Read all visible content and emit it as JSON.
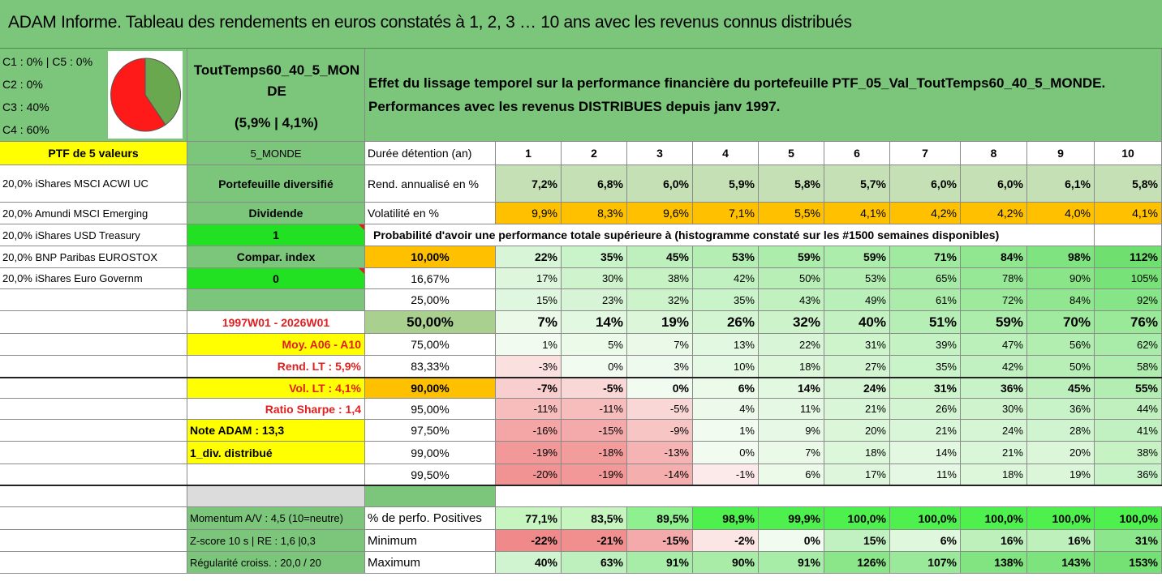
{
  "title": "ADAM Informe. Tableau des rendements en euros constatés à 1, 2, 3 … 10 ans avec les revenus connus distribués",
  "allocation": [
    "C1 : 0% | C5 : 0%",
    "C2 : 0%",
    "C3 : 40%",
    "C4 : 60%"
  ],
  "pie": {
    "C3": 40,
    "C4": 60,
    "colors": {
      "C3": "#6aa84f",
      "C4": "#ff1a1a"
    }
  },
  "portfolio_name": "ToutTemps60_40_5_MONDE",
  "portfolio_stats": "(5,9% | 4,1%)",
  "description": "Effet du lissage temporel sur la performance financière du portefeuille PTF_05_Val_ToutTemps60_40_5_MONDE. Performances avec les revenus DISTRIBUES depuis janv 1997.",
  "ptf_label": "PTF de 5 valeurs",
  "ptf_code": "5_MONDE",
  "holdings": [
    "20,0% iShares MSCI ACWI UC",
    "20,0% Amundi MSCI Emerging",
    "20,0% iShares USD Treasury",
    "20,0% BNP Paribas EUROSTOX",
    "20,0% iShares Euro Governm"
  ],
  "side": {
    "diversified": "Portefeuille diversifié",
    "dividend_label": "Dividende",
    "dividend_value": "1",
    "compar_label": "Compar. index",
    "compar_value": "0",
    "period": "1997W01 - 2026W01",
    "moy": "Moy. A06 - A10",
    "rend_lt": "Rend. LT : 5,9%",
    "vol_lt": "Vol. LT : 4,1%",
    "sharpe": "Ratio Sharpe : 1,4",
    "note": "Note ADAM : 13,3",
    "div": "1_div. distribué",
    "momentum": "Momentum A/V : 4,5 (10=neutre)",
    "zscore": "Z-score 10 s | RE : 1,6 |0,3",
    "regularite": "Régularité croiss. : 20,0 / 20"
  },
  "header_label": "Durée détention (an)",
  "years": [
    "1",
    "2",
    "3",
    "4",
    "5",
    "6",
    "7",
    "8",
    "9",
    "10"
  ],
  "rend_label": "Rend. annualisé en %",
  "rend": [
    "7,2%",
    "6,8%",
    "6,0%",
    "5,9%",
    "5,8%",
    "5,7%",
    "6,0%",
    "6,0%",
    "6,1%",
    "5,8%"
  ],
  "vol_label": "Volatilité en %",
  "vol": [
    "9,9%",
    "8,3%",
    "9,6%",
    "7,1%",
    "5,5%",
    "4,1%",
    "4,2%",
    "4,2%",
    "4,0%",
    "4,1%"
  ],
  "prob_title": "Probabilité d'avoir une performance totale supérieure à (histogramme constaté sur les #1500 semaines disponibles)",
  "quantiles": [
    {
      "p": "10,00%",
      "vals": [
        "22%",
        "35%",
        "45%",
        "53%",
        "59%",
        "59%",
        "71%",
        "84%",
        "98%",
        "112%"
      ]
    },
    {
      "p": "16,67%",
      "vals": [
        "17%",
        "30%",
        "38%",
        "42%",
        "50%",
        "53%",
        "65%",
        "78%",
        "90%",
        "105%"
      ]
    },
    {
      "p": "25,00%",
      "vals": [
        "15%",
        "23%",
        "32%",
        "35%",
        "43%",
        "49%",
        "61%",
        "72%",
        "84%",
        "92%"
      ]
    },
    {
      "p": "50,00%",
      "vals": [
        "7%",
        "14%",
        "19%",
        "26%",
        "32%",
        "40%",
        "51%",
        "59%",
        "70%",
        "76%"
      ]
    },
    {
      "p": "75,00%",
      "vals": [
        "1%",
        "5%",
        "7%",
        "13%",
        "22%",
        "31%",
        "39%",
        "47%",
        "56%",
        "62%"
      ]
    },
    {
      "p": "83,33%",
      "vals": [
        "-3%",
        "0%",
        "3%",
        "10%",
        "18%",
        "27%",
        "35%",
        "42%",
        "50%",
        "58%"
      ]
    },
    {
      "p": "90,00%",
      "vals": [
        "-7%",
        "-5%",
        "0%",
        "6%",
        "14%",
        "24%",
        "31%",
        "36%",
        "45%",
        "55%"
      ]
    },
    {
      "p": "95,00%",
      "vals": [
        "-11%",
        "-11%",
        "-5%",
        "4%",
        "11%",
        "21%",
        "26%",
        "30%",
        "36%",
        "44%"
      ]
    },
    {
      "p": "97,50%",
      "vals": [
        "-16%",
        "-15%",
        "-9%",
        "1%",
        "9%",
        "20%",
        "21%",
        "24%",
        "28%",
        "41%"
      ]
    },
    {
      "p": "99,00%",
      "vals": [
        "-19%",
        "-18%",
        "-13%",
        "0%",
        "7%",
        "18%",
        "14%",
        "21%",
        "20%",
        "38%"
      ]
    },
    {
      "p": "99,50%",
      "vals": [
        "-20%",
        "-19%",
        "-14%",
        "-1%",
        "6%",
        "17%",
        "11%",
        "18%",
        "19%",
        "36%"
      ]
    }
  ],
  "pos_label": "% de perfo. Positives",
  "pos": [
    "77,1%",
    "83,5%",
    "89,5%",
    "98,9%",
    "99,9%",
    "100,0%",
    "100,0%",
    "100,0%",
    "100,0%",
    "100,0%"
  ],
  "min_label": "Minimum",
  "min": [
    "-22%",
    "-21%",
    "-15%",
    "-2%",
    "0%",
    "15%",
    "6%",
    "16%",
    "16%",
    "31%"
  ],
  "max_label": "Maximum",
  "max": [
    "40%",
    "63%",
    "91%",
    "90%",
    "91%",
    "126%",
    "107%",
    "138%",
    "143%",
    "153%"
  ]
}
